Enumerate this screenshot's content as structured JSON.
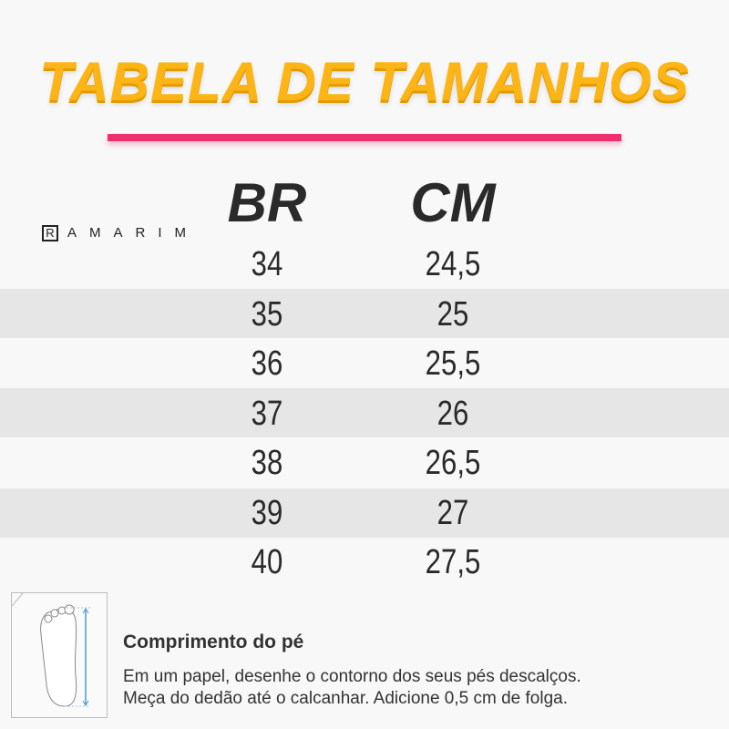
{
  "title": "TABELA DE TAMANHOS",
  "brand": {
    "mark": "R",
    "name": "AMARIM"
  },
  "colors": {
    "title": "#fdb515",
    "underline": "#f0306e",
    "band": "#e6e6e6"
  },
  "table": {
    "headers": [
      "BR",
      "CM"
    ],
    "rows": [
      [
        "34",
        "24,5"
      ],
      [
        "35",
        "25"
      ],
      [
        "36",
        "25,5"
      ],
      [
        "37",
        "26"
      ],
      [
        "38",
        "26,5"
      ],
      [
        "39",
        "27"
      ],
      [
        "40",
        "27,5"
      ]
    ]
  },
  "info": {
    "icon": "foot-measure-icon",
    "heading": "Comprimento do pé",
    "lines": [
      "Em um papel, desenhe o contorno dos seus pés descalços.",
      "Meça do dedão até o calcanhar. Adicione 0,5 cm de folga."
    ]
  }
}
